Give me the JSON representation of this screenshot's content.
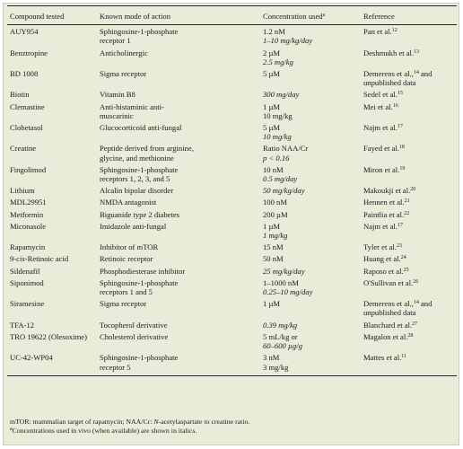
{
  "table": {
    "headers": {
      "compound": "Compound tested",
      "mode": "Known mode of action",
      "conc": "Concentration used",
      "conc_sup": "a",
      "ref": "Reference"
    },
    "rows": [
      {
        "compound": "AUY954",
        "mode": [
          "Sphingosine-1-phosphate",
          "receptor 1"
        ],
        "conc": [
          {
            "t": "1.2 nM",
            "i": false
          },
          {
            "t": "1–10 mg/kg/day",
            "i": true
          }
        ],
        "ref": [
          {
            "t": "Pan et al.",
            "s": "12"
          }
        ]
      },
      {
        "compound": "Benztropine",
        "mode": [
          "Anticholinergic"
        ],
        "conc": [
          {
            "t": "2 µM",
            "i": false
          },
          {
            "t": "2.5 mg/kg",
            "i": true
          }
        ],
        "ref": [
          {
            "t": "Deshmukh et al.",
            "s": "13"
          }
        ]
      },
      {
        "compound": "BD 1008",
        "mode": [
          "Sigma receptor"
        ],
        "conc": [
          {
            "t": "5 µM",
            "i": false
          }
        ],
        "ref": [
          {
            "t": "Demerens et al.,",
            "s": "14"
          },
          {
            "t": "unpublished data",
            "s": ""
          }
        ],
        "ref_suffix": " and"
      },
      {
        "compound": "Biotin",
        "mode": [
          "Vitamin B8"
        ],
        "conc": [
          {
            "t": "300 mg/day",
            "i": true
          }
        ],
        "ref": [
          {
            "t": "Sedel et al.",
            "s": "15"
          }
        ]
      },
      {
        "compound": "Clemastine",
        "mode": [
          "Anti-histaminic anti-",
          "muscarinic"
        ],
        "conc": [
          {
            "t": "1 µM",
            "i": false
          },
          {
            "t": "10 mg/kg",
            "i": false
          }
        ],
        "ref": [
          {
            "t": "Mei et al.",
            "s": "16"
          }
        ]
      },
      {
        "compound": "Clobetasol",
        "mode": [
          "Glucocorticoid anti-fungal"
        ],
        "conc": [
          {
            "t": "5 µM",
            "i": false
          },
          {
            "t": "10 mg/kg",
            "i": true
          }
        ],
        "ref": [
          {
            "t": "Najm et al.",
            "s": "17"
          }
        ]
      },
      {
        "compound": "Creatine",
        "mode": [
          "Peptide derived from arginine,",
          "glycine, and methionine"
        ],
        "conc": [
          {
            "t": "Ratio NAA/Cr",
            "i": false
          },
          {
            "t": "p < 0.16",
            "i": true
          }
        ],
        "ref": [
          {
            "t": "Fayed et al.",
            "s": "18"
          }
        ]
      },
      {
        "compound": "Fingolimod",
        "mode": [
          "Sphingosine-1-phosphate",
          "receptors 1, 2, 3, and 5"
        ],
        "conc": [
          {
            "t": "10 nM",
            "i": false
          },
          {
            "t": "0.5 mg/day",
            "i": true
          }
        ],
        "ref": [
          {
            "t": "Miron et al.",
            "s": "19"
          }
        ]
      },
      {
        "compound": "Lithium",
        "mode": [
          "Alcalin bipolar disorder"
        ],
        "conc": [
          {
            "t": "50 mg/kg/day",
            "i": true
          }
        ],
        "ref": [
          {
            "t": "Makoukji et al.",
            "s": "20"
          }
        ]
      },
      {
        "compound": "MDL29951",
        "mode": [
          "NMDA antagonist"
        ],
        "conc": [
          {
            "t": "100 nM",
            "i": false
          }
        ],
        "ref": [
          {
            "t": "Hennen et al.",
            "s": "21"
          }
        ]
      },
      {
        "compound": "Metformin",
        "mode": [
          "Biguanide type 2 diabetes"
        ],
        "conc": [
          {
            "t": "200 µM",
            "i": false
          }
        ],
        "ref": [
          {
            "t": "Paintlia et al.",
            "s": "22"
          }
        ]
      },
      {
        "compound": "Miconasole",
        "mode": [
          "Imidazole anti-fungal"
        ],
        "conc": [
          {
            "t": "1 µM",
            "i": false
          },
          {
            "t": "1 mg/kg",
            "i": true
          }
        ],
        "ref": [
          {
            "t": "Najm et al.",
            "s": "17"
          }
        ]
      },
      {
        "compound": "Rapamycin",
        "mode": [
          "Inhibitor of mTOR"
        ],
        "conc": [
          {
            "t": "15 nM",
            "i": false
          }
        ],
        "ref": [
          {
            "t": "Tyler et al.",
            "s": "23"
          }
        ]
      },
      {
        "compound_pre": "9-",
        "compound_it": "cis",
        "compound_post": "-Retinoic acid",
        "mode": [
          "Retinoic receptor"
        ],
        "conc": [
          {
            "t": "50 nM",
            "i": false
          }
        ],
        "ref": [
          {
            "t": "Huang et al.",
            "s": "24"
          }
        ]
      },
      {
        "compound": "Sildenafil",
        "mode": [
          "Phosphodiesterase inhibitor"
        ],
        "conc": [
          {
            "t": "25 mg/kg/day",
            "i": true
          }
        ],
        "ref": [
          {
            "t": "Raposo et al.",
            "s": "25"
          }
        ]
      },
      {
        "compound": "Siponimod",
        "mode": [
          "Sphingosine-1-phosphate",
          "receptors 1 and 5"
        ],
        "conc": [
          {
            "t": "1–1000 nM",
            "i": false
          },
          {
            "t": "0.25–10 mg/day",
            "i": true
          }
        ],
        "ref": [
          {
            "t": "O'Sullivan et al.",
            "s": "26"
          }
        ]
      },
      {
        "compound": "Siramesine",
        "mode": [
          "Sigma receptor"
        ],
        "conc": [
          {
            "t": "1 µM",
            "i": false
          }
        ],
        "ref": [
          {
            "t": "Demerens et al.,",
            "s": "14"
          },
          {
            "t": "unpublished data",
            "s": ""
          }
        ],
        "ref_suffix": " and"
      },
      {
        "compound": "TFA-12",
        "mode": [
          "Tocopherol derivative"
        ],
        "conc": [
          {
            "t": "0.39 mg/kg",
            "i": true
          }
        ],
        "ref": [
          {
            "t": "Blanchard et al.",
            "s": "27"
          }
        ]
      },
      {
        "compound": "TRO 19622 (Olesoxime)",
        "mode": [
          "Cholesterol derivative"
        ],
        "conc": [
          {
            "t": "5 mL/kg or",
            "i": false
          },
          {
            "t": "60–600 µg/g",
            "i": true
          }
        ],
        "ref": [
          {
            "t": "Magalon et al.",
            "s": "28"
          }
        ]
      },
      {
        "compound": "UC-42-WP04",
        "mode": [
          "Sphingosine-1-phosphate",
          "receptor 5"
        ],
        "conc": [
          {
            "t": "3 nM",
            "i": false
          },
          {
            "t": "3 mg/kg",
            "i": false
          }
        ],
        "ref": [
          {
            "t": "Mattes et al.",
            "s": "11"
          }
        ]
      }
    ]
  },
  "notes": {
    "abbrev_pre": "mTOR: mammalian target of rapamycin; NAA/Cr: ",
    "abbrev_it": "N",
    "abbrev_post": "-acetylaspartate to creatine ratio.",
    "footnote_sup": "a",
    "footnote_text": "Concentrations used in vivo (when available) are shown in italics."
  }
}
